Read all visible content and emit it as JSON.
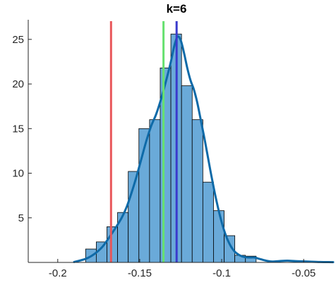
{
  "chart_data": {
    "type": "bar",
    "title": "k=6",
    "xlabel": "",
    "ylabel": "",
    "xlim": [
      -0.218,
      -0.032
    ],
    "ylim": [
      0,
      27.2
    ],
    "x_ticks": [
      -0.2,
      -0.15,
      -0.1,
      -0.05
    ],
    "x_tick_labels": [
      "-0.2",
      "-0.15",
      "-0.1",
      "-0.05"
    ],
    "y_ticks": [
      5,
      10,
      15,
      20,
      25
    ],
    "y_tick_labels": [
      "5",
      "10",
      "15",
      "20",
      "25"
    ],
    "grid": false,
    "box": "left-bottom",
    "histogram": {
      "bin_width": 0.0065,
      "bins": [
        {
          "x0": -0.183,
          "x1": -0.1765,
          "count": 1.5
        },
        {
          "x0": -0.1765,
          "x1": -0.17,
          "count": 2.3
        },
        {
          "x0": -0.17,
          "x1": -0.1635,
          "count": 4.0
        },
        {
          "x0": -0.1635,
          "x1": -0.157,
          "count": 5.6
        },
        {
          "x0": -0.157,
          "x1": -0.1505,
          "count": 10.2
        },
        {
          "x0": -0.1505,
          "x1": -0.144,
          "count": 15.0
        },
        {
          "x0": -0.144,
          "x1": -0.1375,
          "count": 16.0
        },
        {
          "x0": -0.1375,
          "x1": -0.131,
          "count": 21.8
        },
        {
          "x0": -0.131,
          "x1": -0.1245,
          "count": 25.6
        },
        {
          "x0": -0.1245,
          "x1": -0.118,
          "count": 19.8
        },
        {
          "x0": -0.118,
          "x1": -0.1115,
          "count": 16.0
        },
        {
          "x0": -0.1115,
          "x1": -0.105,
          "count": 9.0
        },
        {
          "x0": -0.105,
          "x1": -0.0985,
          "count": 5.8
        },
        {
          "x0": -0.0985,
          "x1": -0.092,
          "count": 3.0
        },
        {
          "x0": -0.092,
          "x1": -0.0855,
          "count": 0.8
        },
        {
          "x0": -0.0855,
          "x1": -0.079,
          "count": 0.7
        }
      ],
      "fill": "#6aaad9",
      "edge": "#000000"
    },
    "density_curve": {
      "color": "#0e6aa8",
      "x": [
        -0.19,
        -0.183,
        -0.178,
        -0.173,
        -0.169,
        -0.165,
        -0.161,
        -0.158,
        -0.155,
        -0.152,
        -0.149,
        -0.146,
        -0.143,
        -0.14,
        -0.137,
        -0.134,
        -0.131,
        -0.129,
        -0.127,
        -0.125,
        -0.123,
        -0.121,
        -0.119,
        -0.117,
        -0.115,
        -0.113,
        -0.11,
        -0.107,
        -0.104,
        -0.101,
        -0.098,
        -0.095,
        -0.092,
        -0.089,
        -0.086,
        -0.083,
        -0.08,
        -0.077,
        -0.073,
        -0.069,
        -0.065,
        -0.06,
        -0.055,
        -0.05,
        -0.045,
        -0.04,
        -0.035,
        -0.032
      ],
      "y": [
        0.05,
        0.4,
        0.9,
        1.7,
        2.7,
        3.8,
        5.0,
        6.2,
        7.8,
        9.6,
        11.6,
        13.6,
        15.3,
        16.6,
        18.3,
        20.3,
        22.5,
        24.2,
        25.3,
        24.9,
        23.5,
        21.8,
        20.4,
        19.4,
        18.0,
        16.2,
        13.4,
        10.4,
        7.6,
        5.2,
        3.3,
        2.0,
        1.2,
        0.8,
        0.6,
        0.55,
        0.55,
        0.4,
        0.2,
        0.1,
        0.15,
        0.2,
        0.15,
        0.12,
        0.08,
        0.05,
        0.04,
        0.03
      ]
    },
    "vertical_lines": [
      {
        "x": -0.1675,
        "color": "#e8565a"
      },
      {
        "x": -0.1355,
        "color": "#66e070"
      },
      {
        "x": -0.1275,
        "color": "#3a3acc"
      }
    ]
  }
}
